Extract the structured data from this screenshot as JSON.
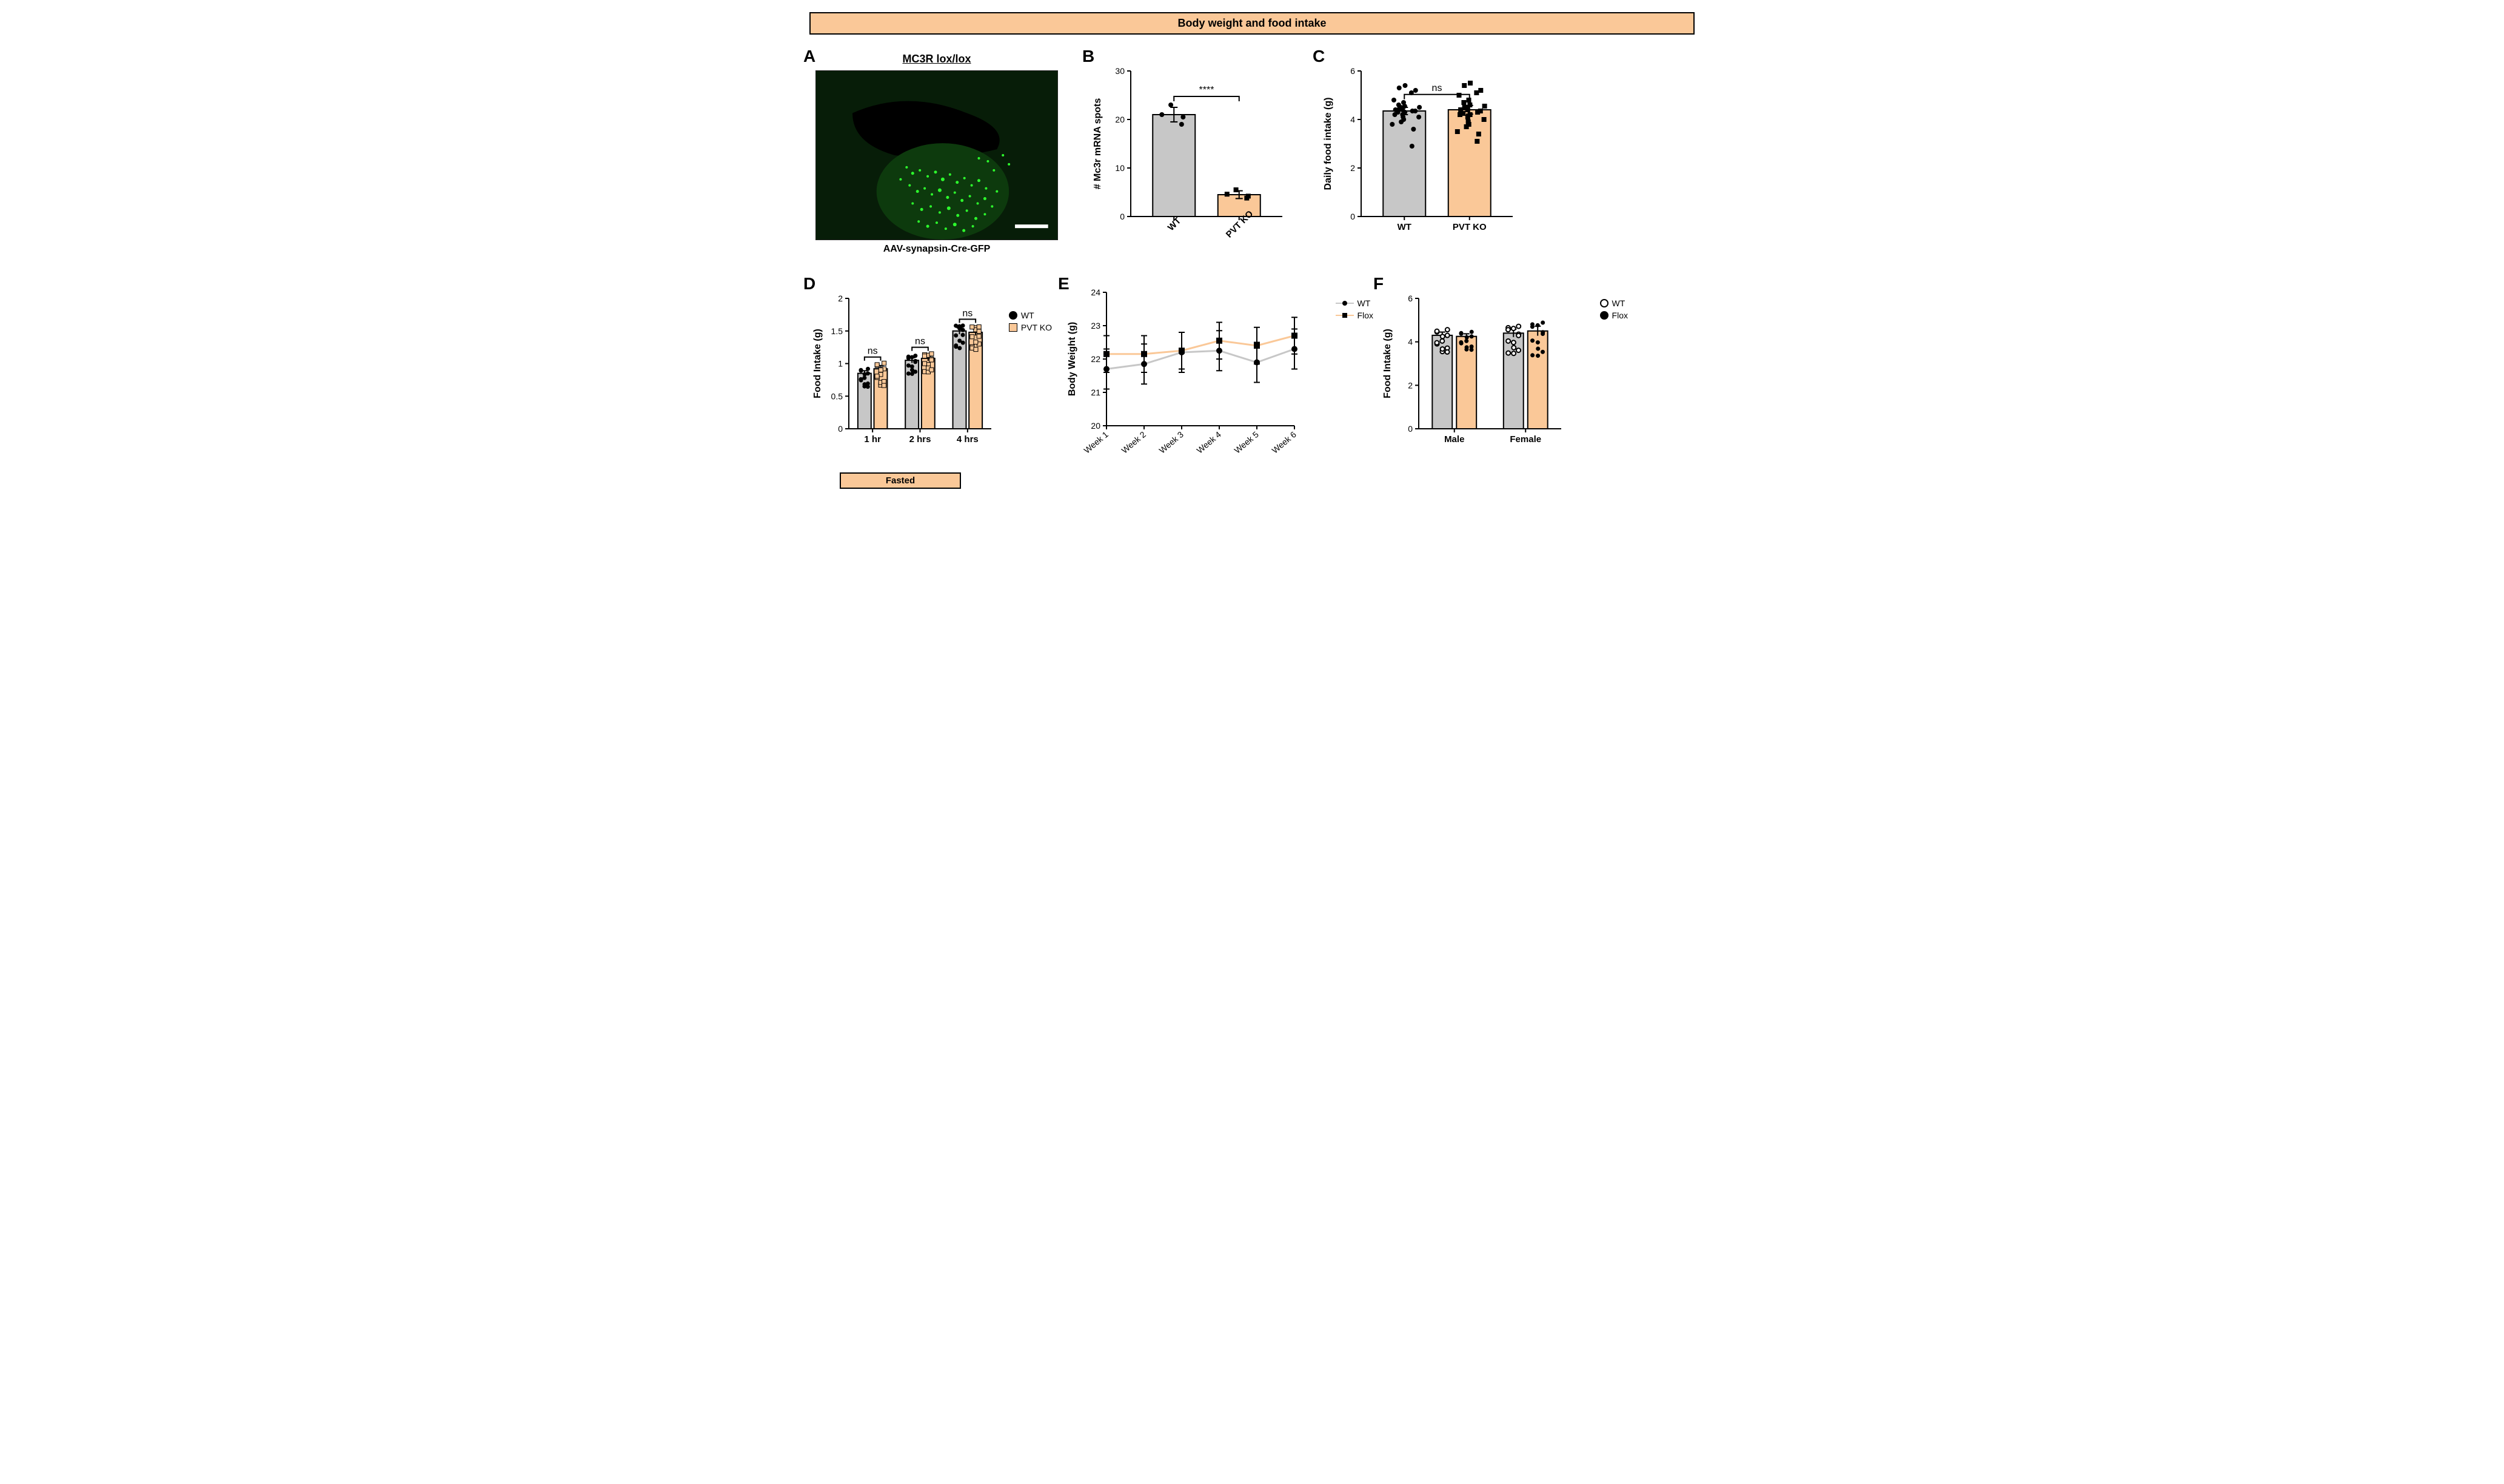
{
  "title": "Body weight and food intake",
  "colors": {
    "wt_bar": "#c7c7c7",
    "ko_bar": "#fac898",
    "stroke": "#000000",
    "background": "#ffffff"
  },
  "panelA": {
    "label": "A",
    "title": "MC3R lox/lox",
    "caption": "AAV-synapsin-Cre-GFP",
    "scalebar_color": "#ffffff"
  },
  "panelB": {
    "label": "B",
    "ylabel": "# Mc3r mRNA spots",
    "ylim": [
      0,
      30
    ],
    "yticks": [
      0,
      10,
      20,
      30
    ],
    "categories": [
      "WT",
      "PVT KO"
    ],
    "values": [
      21,
      4.5
    ],
    "errors": [
      1.5,
      0.8
    ],
    "bar_colors": [
      "#c7c7c7",
      "#fac898"
    ],
    "sig": "****",
    "points": {
      "WT": [
        19,
        20.5,
        21,
        23
      ],
      "PVT KO": [
        3.8,
        4.2,
        4.6,
        5.5
      ]
    }
  },
  "panelC": {
    "label": "C",
    "ylabel": "Daily food intake (g)",
    "ylim": [
      0,
      6
    ],
    "yticks": [
      0,
      2,
      4,
      6
    ],
    "categories": [
      "WT",
      "PVT KO"
    ],
    "values": [
      4.35,
      4.4
    ],
    "errors": [
      0.15,
      0.18
    ],
    "bar_colors": [
      "#c7c7c7",
      "#fac898"
    ],
    "sig": "ns",
    "points": {
      "WT": [
        2.9,
        3.6,
        3.8,
        3.9,
        4.0,
        4.1,
        4.1,
        4.2,
        4.2,
        4.3,
        4.3,
        4.35,
        4.35,
        4.4,
        4.4,
        4.45,
        4.5,
        4.5,
        4.55,
        4.6,
        4.7,
        4.8,
        5.1,
        5.2,
        5.3,
        5.4
      ],
      "PVT KO": [
        3.1,
        3.4,
        3.5,
        3.7,
        3.8,
        3.9,
        4.0,
        4.1,
        4.2,
        4.2,
        4.25,
        4.3,
        4.35,
        4.4,
        4.4,
        4.5,
        4.5,
        4.55,
        4.6,
        4.7,
        4.8,
        5.0,
        5.1,
        5.2,
        5.4,
        5.5
      ]
    }
  },
  "panelD": {
    "label": "D",
    "ylabel": "Food Intake (g)",
    "ylim": [
      0,
      2.0
    ],
    "yticks": [
      0,
      0.5,
      1.0,
      1.5,
      2.0
    ],
    "groups": [
      "1 hr",
      "2 hrs",
      "4 hrs"
    ],
    "categories": [
      "WT",
      "PVT KO"
    ],
    "bar_colors": [
      "#c7c7c7",
      "#fac898"
    ],
    "values": {
      "1 hr": [
        0.85,
        0.92
      ],
      "2 hrs": [
        1.05,
        1.08
      ],
      "4 hrs": [
        1.5,
        1.48
      ]
    },
    "errors": {
      "1 hr": [
        0.04,
        0.05
      ],
      "2 hrs": [
        0.04,
        0.04
      ],
      "4 hrs": [
        0.05,
        0.05
      ]
    },
    "sig": [
      "ns",
      "ns",
      "ns"
    ],
    "fasted_label": "Fasted",
    "legend": {
      "WT": "circle-black",
      "PVT KO": "square-peach"
    }
  },
  "panelE": {
    "label": "E",
    "ylabel": "Body Weight (g)",
    "ylim": [
      20,
      24
    ],
    "yticks": [
      20,
      21,
      22,
      23,
      24
    ],
    "x_categories": [
      "Week 1",
      "Week 2",
      "Week 3",
      "Week 4",
      "Week 5",
      "Week 6"
    ],
    "series": {
      "WT": {
        "color": "#c7c7c7",
        "marker": "circle",
        "values": [
          21.7,
          21.85,
          22.2,
          22.25,
          21.9,
          22.3
        ],
        "errors": [
          0.6,
          0.6,
          0.6,
          0.6,
          0.6,
          0.6
        ]
      },
      "Flox": {
        "color": "#fac898",
        "marker": "square",
        "values": [
          22.15,
          22.15,
          22.25,
          22.55,
          22.4,
          22.7
        ],
        "errors": [
          0.55,
          0.55,
          0.55,
          0.55,
          0.55,
          0.55
        ]
      }
    },
    "legend": [
      "WT",
      "Flox"
    ]
  },
  "panelF": {
    "label": "F",
    "ylabel": "Food Intake (g)",
    "ylim": [
      0,
      6
    ],
    "yticks": [
      0,
      2,
      4,
      6
    ],
    "groups": [
      "Male",
      "Female"
    ],
    "categories": [
      "WT",
      "Flox"
    ],
    "bar_colors": [
      "#c7c7c7",
      "#fac898"
    ],
    "values": {
      "Male": [
        4.3,
        4.25
      ],
      "Female": [
        4.4,
        4.5
      ]
    },
    "errors": {
      "Male": [
        0.15,
        0.12
      ],
      "Female": [
        0.18,
        0.22
      ]
    },
    "legend": {
      "WT": "circle-open",
      "Flox": "circle-black"
    }
  }
}
